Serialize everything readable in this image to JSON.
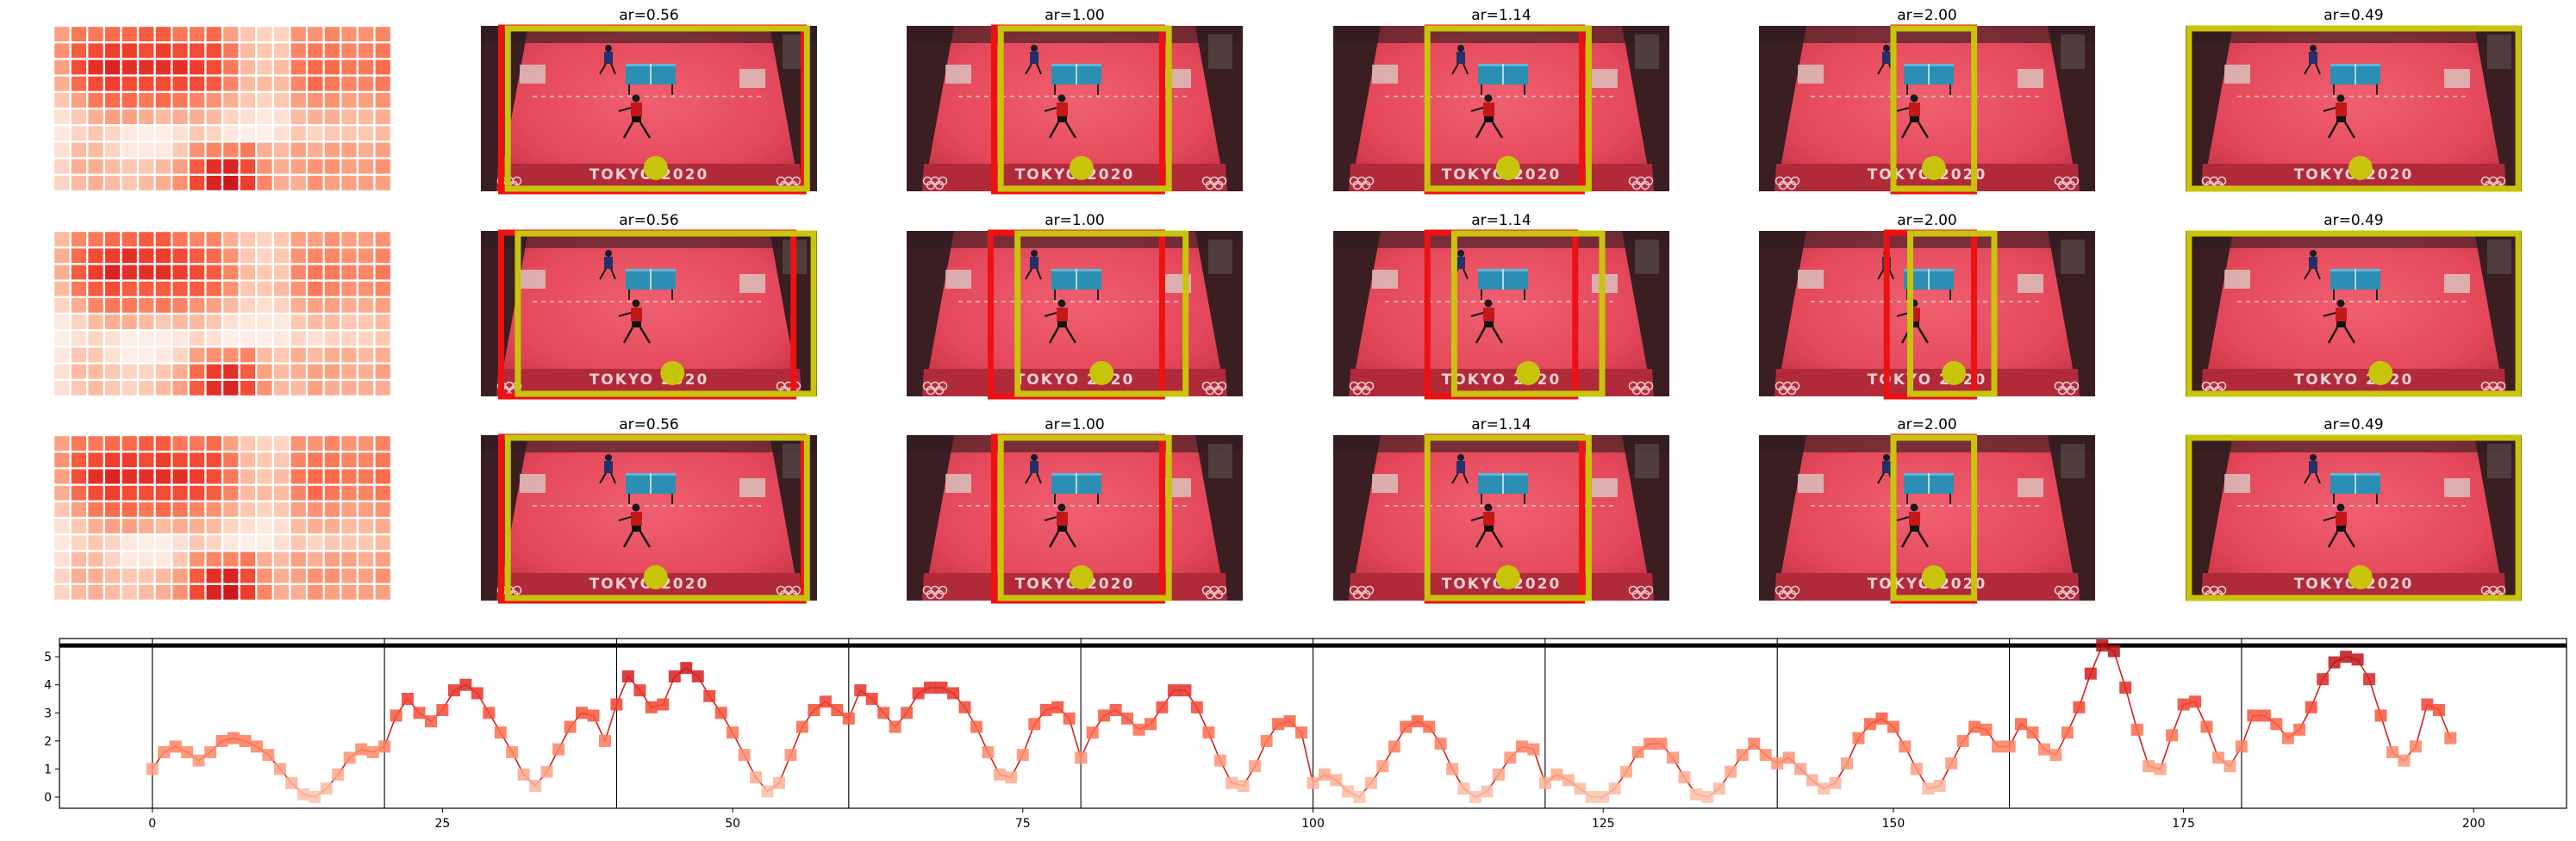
{
  "colors": {
    "court": "#e4485a",
    "court_dark": "#b82c3c",
    "surround": "#2a1a1c",
    "table": "#2a8fb2",
    "yellow_box": "#c8c40c",
    "yellow_dot": "#c8c40c",
    "red_box": "#ee1111",
    "line": "#d42020",
    "marker_low": "#fcbba1",
    "marker_high": "#a50f15"
  },
  "court_text": "TOKYO 2020",
  "rows": [
    {
      "heatmap": [
        [
          0.4,
          0.55,
          0.55,
          0.6,
          0.6,
          0.65,
          0.65,
          0.55,
          0.55,
          0.6,
          0.4,
          0.25,
          0.2,
          0.2,
          0.45,
          0.45,
          0.5,
          0.45,
          0.45,
          0.5
        ],
        [
          0.45,
          0.65,
          0.7,
          0.75,
          0.75,
          0.7,
          0.75,
          0.7,
          0.7,
          0.7,
          0.55,
          0.3,
          0.25,
          0.25,
          0.5,
          0.55,
          0.55,
          0.5,
          0.5,
          0.55
        ],
        [
          0.4,
          0.7,
          0.8,
          0.85,
          0.8,
          0.8,
          0.8,
          0.8,
          0.75,
          0.7,
          0.55,
          0.3,
          0.25,
          0.3,
          0.55,
          0.6,
          0.6,
          0.55,
          0.55,
          0.6
        ],
        [
          0.35,
          0.6,
          0.7,
          0.75,
          0.7,
          0.7,
          0.7,
          0.7,
          0.7,
          0.65,
          0.5,
          0.3,
          0.3,
          0.3,
          0.5,
          0.6,
          0.55,
          0.5,
          0.5,
          0.55
        ],
        [
          0.25,
          0.4,
          0.55,
          0.6,
          0.6,
          0.55,
          0.6,
          0.55,
          0.5,
          0.45,
          0.35,
          0.25,
          0.2,
          0.25,
          0.4,
          0.45,
          0.45,
          0.4,
          0.4,
          0.45
        ],
        [
          0.15,
          0.25,
          0.35,
          0.4,
          0.4,
          0.35,
          0.3,
          0.35,
          0.35,
          0.3,
          0.2,
          0.15,
          0.1,
          0.15,
          0.3,
          0.35,
          0.35,
          0.3,
          0.3,
          0.35
        ],
        [
          0.1,
          0.2,
          0.25,
          0.2,
          0.1,
          0.05,
          0.05,
          0.15,
          0.25,
          0.2,
          0.1,
          0.05,
          0.05,
          0.15,
          0.25,
          0.2,
          0.25,
          0.25,
          0.25,
          0.3
        ],
        [
          0.15,
          0.3,
          0.3,
          0.2,
          0.1,
          0.1,
          0.1,
          0.25,
          0.45,
          0.5,
          0.5,
          0.55,
          0.35,
          0.3,
          0.4,
          0.35,
          0.4,
          0.4,
          0.35,
          0.4
        ],
        [
          0.2,
          0.35,
          0.35,
          0.3,
          0.25,
          0.25,
          0.3,
          0.4,
          0.65,
          0.8,
          0.85,
          0.7,
          0.45,
          0.35,
          0.4,
          0.45,
          0.45,
          0.4,
          0.4,
          0.45
        ],
        [
          0.2,
          0.3,
          0.35,
          0.3,
          0.25,
          0.3,
          0.35,
          0.45,
          0.7,
          0.85,
          0.9,
          0.75,
          0.5,
          0.35,
          0.35,
          0.45,
          0.4,
          0.4,
          0.4,
          0.4
        ]
      ],
      "panels": [
        {
          "title": "ar=0.56",
          "yellow": [
            0.08,
            0.97
          ],
          "red": [
            0.06,
            0.96
          ],
          "dot": 0.52
        },
        {
          "title": "ar=1.00",
          "yellow": [
            0.28,
            0.78
          ],
          "red": [
            0.26,
            0.76
          ],
          "dot": 0.52
        },
        {
          "title": "ar=1.14",
          "yellow": [
            0.28,
            0.76
          ],
          "red": [
            0.28,
            0.74
          ],
          "dot": 0.52
        },
        {
          "title": "ar=2.00",
          "yellow": [
            0.4,
            0.64
          ],
          "red": [
            0.4,
            0.64
          ],
          "dot": 0.52
        },
        {
          "title": "ar=0.49",
          "yellow": [
            0.01,
            0.99
          ],
          "red": null,
          "dot": 0.52
        }
      ]
    },
    {
      "heatmap": [
        [
          0.3,
          0.5,
          0.55,
          0.6,
          0.6,
          0.65,
          0.65,
          0.55,
          0.5,
          0.5,
          0.35,
          0.25,
          0.2,
          0.25,
          0.4,
          0.4,
          0.45,
          0.4,
          0.4,
          0.45
        ],
        [
          0.35,
          0.6,
          0.7,
          0.75,
          0.8,
          0.75,
          0.75,
          0.7,
          0.65,
          0.6,
          0.45,
          0.25,
          0.2,
          0.25,
          0.45,
          0.5,
          0.5,
          0.45,
          0.45,
          0.5
        ],
        [
          0.35,
          0.65,
          0.75,
          0.85,
          0.8,
          0.8,
          0.8,
          0.75,
          0.7,
          0.65,
          0.5,
          0.3,
          0.25,
          0.25,
          0.5,
          0.55,
          0.55,
          0.5,
          0.5,
          0.55
        ],
        [
          0.3,
          0.55,
          0.65,
          0.7,
          0.65,
          0.65,
          0.65,
          0.65,
          0.65,
          0.6,
          0.45,
          0.25,
          0.25,
          0.3,
          0.45,
          0.55,
          0.5,
          0.45,
          0.45,
          0.5
        ],
        [
          0.2,
          0.35,
          0.5,
          0.55,
          0.55,
          0.5,
          0.55,
          0.5,
          0.45,
          0.4,
          0.3,
          0.2,
          0.15,
          0.2,
          0.35,
          0.4,
          0.4,
          0.35,
          0.35,
          0.4
        ],
        [
          0.1,
          0.2,
          0.3,
          0.35,
          0.35,
          0.3,
          0.25,
          0.3,
          0.3,
          0.25,
          0.15,
          0.1,
          0.1,
          0.1,
          0.25,
          0.3,
          0.3,
          0.25,
          0.25,
          0.3
        ],
        [
          0.05,
          0.15,
          0.2,
          0.15,
          0.05,
          0.05,
          0.05,
          0.1,
          0.2,
          0.15,
          0.05,
          0.05,
          0.05,
          0.1,
          0.2,
          0.15,
          0.2,
          0.2,
          0.2,
          0.25
        ],
        [
          0.1,
          0.25,
          0.25,
          0.15,
          0.05,
          0.05,
          0.1,
          0.2,
          0.4,
          0.45,
          0.45,
          0.5,
          0.3,
          0.25,
          0.35,
          0.3,
          0.35,
          0.35,
          0.3,
          0.35
        ],
        [
          0.15,
          0.3,
          0.3,
          0.25,
          0.2,
          0.2,
          0.25,
          0.35,
          0.6,
          0.75,
          0.8,
          0.65,
          0.4,
          0.3,
          0.35,
          0.4,
          0.4,
          0.35,
          0.35,
          0.4
        ],
        [
          0.15,
          0.25,
          0.3,
          0.25,
          0.2,
          0.25,
          0.3,
          0.4,
          0.65,
          0.8,
          0.85,
          0.7,
          0.45,
          0.3,
          0.3,
          0.4,
          0.35,
          0.35,
          0.35,
          0.35
        ]
      ],
      "panels": [
        {
          "title": "ar=0.56",
          "yellow": [
            0.11,
            0.99
          ],
          "red": [
            0.06,
            0.93
          ],
          "dot": 0.57
        },
        {
          "title": "ar=1.00",
          "yellow": [
            0.33,
            0.83
          ],
          "red": [
            0.25,
            0.76
          ],
          "dot": 0.58
        },
        {
          "title": "ar=1.14",
          "yellow": [
            0.36,
            0.8
          ],
          "red": [
            0.28,
            0.72
          ],
          "dot": 0.58
        },
        {
          "title": "ar=2.00",
          "yellow": [
            0.45,
            0.7
          ],
          "red": [
            0.38,
            0.64
          ],
          "dot": 0.58
        },
        {
          "title": "ar=0.49",
          "yellow": [
            0.01,
            0.99
          ],
          "red": null,
          "dot": 0.58
        }
      ]
    },
    {
      "heatmap": [
        [
          0.4,
          0.55,
          0.55,
          0.6,
          0.6,
          0.65,
          0.65,
          0.55,
          0.55,
          0.6,
          0.4,
          0.25,
          0.2,
          0.2,
          0.45,
          0.45,
          0.5,
          0.45,
          0.45,
          0.5
        ],
        [
          0.45,
          0.65,
          0.7,
          0.75,
          0.75,
          0.7,
          0.75,
          0.7,
          0.7,
          0.7,
          0.55,
          0.3,
          0.25,
          0.25,
          0.5,
          0.55,
          0.55,
          0.5,
          0.5,
          0.55
        ],
        [
          0.4,
          0.7,
          0.8,
          0.85,
          0.8,
          0.8,
          0.8,
          0.8,
          0.75,
          0.7,
          0.55,
          0.3,
          0.25,
          0.3,
          0.55,
          0.6,
          0.6,
          0.55,
          0.55,
          0.6
        ],
        [
          0.35,
          0.6,
          0.7,
          0.75,
          0.7,
          0.7,
          0.7,
          0.7,
          0.7,
          0.65,
          0.5,
          0.3,
          0.3,
          0.3,
          0.5,
          0.6,
          0.55,
          0.5,
          0.5,
          0.55
        ],
        [
          0.25,
          0.4,
          0.55,
          0.6,
          0.6,
          0.55,
          0.6,
          0.55,
          0.5,
          0.45,
          0.35,
          0.25,
          0.2,
          0.25,
          0.4,
          0.45,
          0.45,
          0.4,
          0.4,
          0.45
        ],
        [
          0.15,
          0.25,
          0.35,
          0.4,
          0.4,
          0.35,
          0.3,
          0.35,
          0.35,
          0.3,
          0.2,
          0.15,
          0.1,
          0.15,
          0.3,
          0.35,
          0.35,
          0.3,
          0.3,
          0.35
        ],
        [
          0.1,
          0.2,
          0.25,
          0.2,
          0.1,
          0.05,
          0.05,
          0.15,
          0.25,
          0.2,
          0.1,
          0.05,
          0.05,
          0.15,
          0.25,
          0.2,
          0.25,
          0.25,
          0.25,
          0.3
        ],
        [
          0.15,
          0.3,
          0.3,
          0.2,
          0.1,
          0.1,
          0.1,
          0.25,
          0.45,
          0.5,
          0.5,
          0.55,
          0.35,
          0.3,
          0.4,
          0.35,
          0.4,
          0.4,
          0.35,
          0.4
        ],
        [
          0.2,
          0.35,
          0.35,
          0.3,
          0.25,
          0.25,
          0.3,
          0.4,
          0.65,
          0.8,
          0.85,
          0.7,
          0.45,
          0.35,
          0.4,
          0.45,
          0.45,
          0.4,
          0.4,
          0.45
        ],
        [
          0.2,
          0.3,
          0.35,
          0.3,
          0.25,
          0.3,
          0.35,
          0.45,
          0.7,
          0.85,
          0.9,
          0.75,
          0.5,
          0.35,
          0.35,
          0.45,
          0.4,
          0.4,
          0.4,
          0.4
        ]
      ],
      "panels": [
        {
          "title": "ar=0.56",
          "yellow": [
            0.08,
            0.97
          ],
          "red": [
            0.06,
            0.96
          ],
          "dot": 0.52
        },
        {
          "title": "ar=1.00",
          "yellow": [
            0.28,
            0.78
          ],
          "red": [
            0.26,
            0.76
          ],
          "dot": 0.52
        },
        {
          "title": "ar=1.14",
          "yellow": [
            0.28,
            0.76
          ],
          "red": [
            0.28,
            0.74
          ],
          "dot": 0.52
        },
        {
          "title": "ar=2.00",
          "yellow": [
            0.4,
            0.64
          ],
          "red": [
            0.4,
            0.64
          ],
          "dot": 0.52
        },
        {
          "title": "ar=0.49",
          "yellow": [
            0.01,
            0.99
          ],
          "red": null,
          "dot": 0.52
        }
      ]
    }
  ],
  "chart_data": {
    "type": "line",
    "title": "",
    "xlabel": "",
    "ylabel": "",
    "xlim": [
      -8,
      208
    ],
    "ylim": [
      -0.4,
      5.65
    ],
    "xticks": [
      0,
      25,
      50,
      75,
      100,
      125,
      150,
      175,
      200
    ],
    "yticks": [
      0,
      1,
      2,
      3,
      4,
      5
    ],
    "threshold_line": 5.4,
    "segment_boundaries": [
      0,
      20,
      40,
      60,
      80,
      100,
      120,
      140,
      160,
      180
    ],
    "grid": false,
    "series": [
      {
        "name": "",
        "x_start": 0,
        "values": [
          1.0,
          1.6,
          1.8,
          1.6,
          1.3,
          1.6,
          2.0,
          2.1,
          2.0,
          1.8,
          1.5,
          1.0,
          0.5,
          0.1,
          0.0,
          0.3,
          0.8,
          1.4,
          1.7,
          1.6,
          1.8,
          2.9,
          3.5,
          3.0,
          2.7,
          3.1,
          3.8,
          4.0,
          3.7,
          3.0,
          2.3,
          1.6,
          0.8,
          0.4,
          0.9,
          1.7,
          2.5,
          3.0,
          2.9,
          2.0,
          3.3,
          4.3,
          3.8,
          3.2,
          3.3,
          4.3,
          4.6,
          4.3,
          3.6,
          3.0,
          2.3,
          1.5,
          0.7,
          0.2,
          0.5,
          1.5,
          2.5,
          3.1,
          3.4,
          3.1,
          2.8,
          3.8,
          3.5,
          3.0,
          2.5,
          3.0,
          3.7,
          3.9,
          3.9,
          3.7,
          3.2,
          2.5,
          1.6,
          0.8,
          0.7,
          1.5,
          2.6,
          3.1,
          3.2,
          2.8,
          1.4,
          2.3,
          2.9,
          3.1,
          2.8,
          2.4,
          2.6,
          3.2,
          3.8,
          3.8,
          3.2,
          2.3,
          1.3,
          0.5,
          0.4,
          1.1,
          2.0,
          2.6,
          2.7,
          2.3,
          0.5,
          0.8,
          0.6,
          0.2,
          0.0,
          0.5,
          1.1,
          1.8,
          2.5,
          2.7,
          2.5,
          1.9,
          1.0,
          0.3,
          0.0,
          0.2,
          0.8,
          1.4,
          1.8,
          1.7,
          0.5,
          0.8,
          0.6,
          0.3,
          0.0,
          0.0,
          0.3,
          0.9,
          1.6,
          1.9,
          1.9,
          1.4,
          0.7,
          0.1,
          0.0,
          0.3,
          0.9,
          1.5,
          1.9,
          1.5,
          1.2,
          1.4,
          1.0,
          0.6,
          0.3,
          0.5,
          1.2,
          2.1,
          2.6,
          2.8,
          2.5,
          1.8,
          1.0,
          0.3,
          0.4,
          1.2,
          2.0,
          2.5,
          2.4,
          1.8,
          1.8,
          2.6,
          2.3,
          1.7,
          1.5,
          2.3,
          3.2,
          4.4,
          5.4,
          5.2,
          3.9,
          2.4,
          1.1,
          1.0,
          2.2,
          3.3,
          3.4,
          2.5,
          1.4,
          1.1,
          1.8,
          2.9,
          2.9,
          2.6,
          2.1,
          2.4,
          3.2,
          4.2,
          4.8,
          5.0,
          4.9,
          4.2,
          2.9,
          1.6,
          1.3,
          1.8,
          3.3,
          3.1,
          2.1
        ]
      }
    ]
  }
}
